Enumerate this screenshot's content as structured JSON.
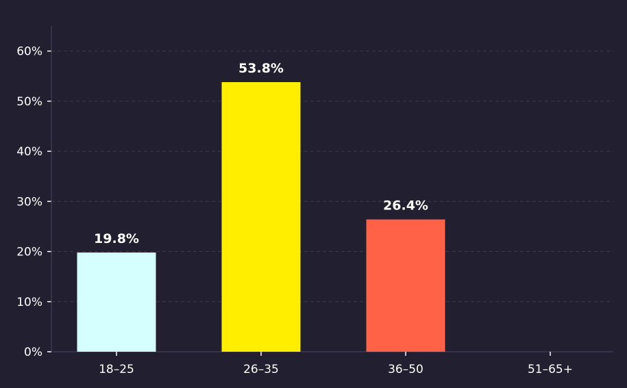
{
  "chart_data": {
    "type": "bar",
    "title": "",
    "xlabel": "",
    "ylabel": "",
    "categories": [
      "18–25",
      "26–35",
      "36–50",
      "51–65+"
    ],
    "values": [
      19.8,
      53.8,
      26.4,
      0
    ],
    "value_labels": [
      "19.8%",
      "53.8%",
      "26.4%",
      ""
    ],
    "colors": [
      "#d4fffe",
      "#ffee00",
      "#ff6247",
      "#ffffff"
    ],
    "ylim": [
      0,
      65
    ],
    "yticks": [
      0,
      10,
      20,
      30,
      40,
      50,
      60
    ],
    "ytick_labels": [
      "0%",
      "10%",
      "20%",
      "30%",
      "40%",
      "50%",
      "60%"
    ],
    "grid": true,
    "legend": "none",
    "background": "#221f30"
  }
}
